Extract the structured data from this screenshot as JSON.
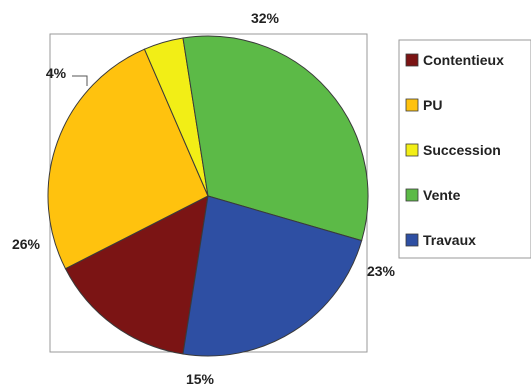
{
  "chart_data": {
    "type": "pie",
    "title": "",
    "slices": [
      {
        "label": "Contentieux",
        "value": 15,
        "value_label": "15%",
        "color": "#7b1414"
      },
      {
        "label": "PU",
        "value": 26,
        "value_label": "26%",
        "color": "#ffc20e"
      },
      {
        "label": "Succession",
        "value": 4,
        "value_label": "4%",
        "color": "#f2ee16"
      },
      {
        "label": "Vente",
        "value": 32,
        "value_label": "32%",
        "color": "#5cba47"
      },
      {
        "label": "Travaux",
        "value": 23,
        "value_label": "23%",
        "color": "#2e4fa3"
      }
    ],
    "legend": {
      "placement": "right",
      "entries": [
        "Contentieux",
        "PU",
        "Succession",
        "Vente",
        "Travaux"
      ]
    }
  }
}
